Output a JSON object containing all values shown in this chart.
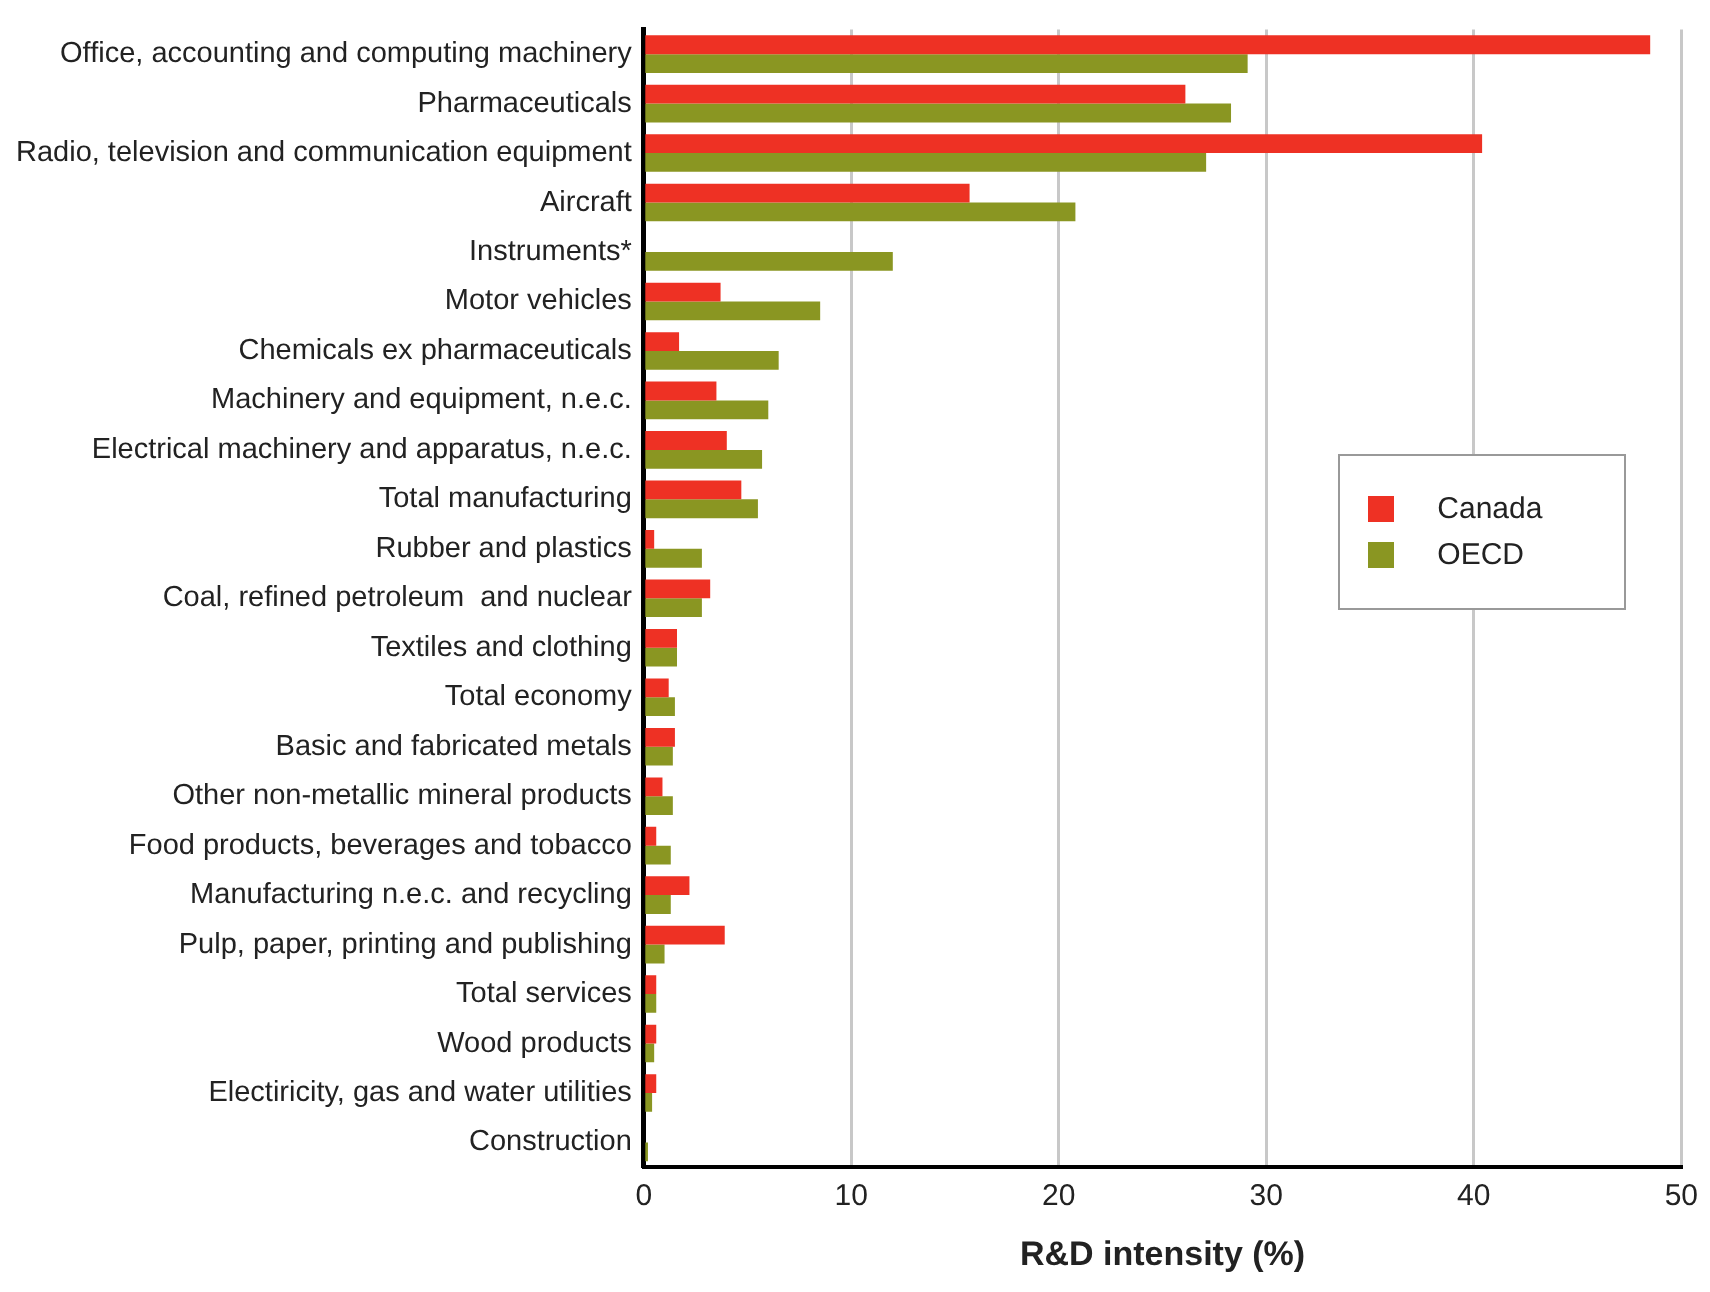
{
  "chart_data": {
    "type": "bar",
    "orientation": "horizontal",
    "xlabel": "R&D intensity (%)",
    "categories": [
      "Office, accounting and computing machinery",
      "Pharmaceuticals",
      "Radio, television and communication equipment",
      "Aircraft",
      "Instruments*",
      "Motor vehicles",
      "Chemicals ex pharmaceuticals",
      "Machinery and equipment, n.e.c.",
      "Electrical machinery and apparatus, n.e.c.",
      "Total manufacturing",
      "Rubber and plastics",
      "Coal, refined petroleum  and nuclear",
      "Textiles and clothing",
      "Total economy",
      "Basic and fabricated metals",
      "Other non-metallic mineral products",
      "Food products, beverages and tobacco",
      "Manufacturing n.e.c. and recycling",
      "Pulp, paper, printing and publishing",
      "Total services",
      "Wood products",
      "Electiricity, gas and water utilities",
      "Construction"
    ],
    "series": [
      {
        "name": "Canada",
        "color": "#ee3124",
        "values": [
          48.5,
          26.1,
          40.4,
          15.7,
          null,
          3.7,
          1.7,
          3.5,
          4.0,
          4.7,
          0.5,
          3.2,
          1.6,
          1.2,
          1.5,
          0.9,
          0.6,
          2.2,
          3.9,
          0.6,
          0.6,
          0.6,
          null
        ]
      },
      {
        "name": "OECD",
        "color": "#8a9622",
        "values": [
          29.1,
          28.3,
          27.1,
          20.8,
          12.0,
          8.5,
          6.5,
          6.0,
          5.7,
          5.5,
          2.8,
          2.8,
          1.6,
          1.5,
          1.4,
          1.4,
          1.3,
          1.3,
          1.0,
          0.6,
          0.5,
          0.4,
          0.2
        ]
      }
    ],
    "xlim": [
      0,
      50
    ],
    "xticks": [
      0,
      10,
      20,
      30,
      40,
      50
    ],
    "grid": "x",
    "legend": "right"
  }
}
